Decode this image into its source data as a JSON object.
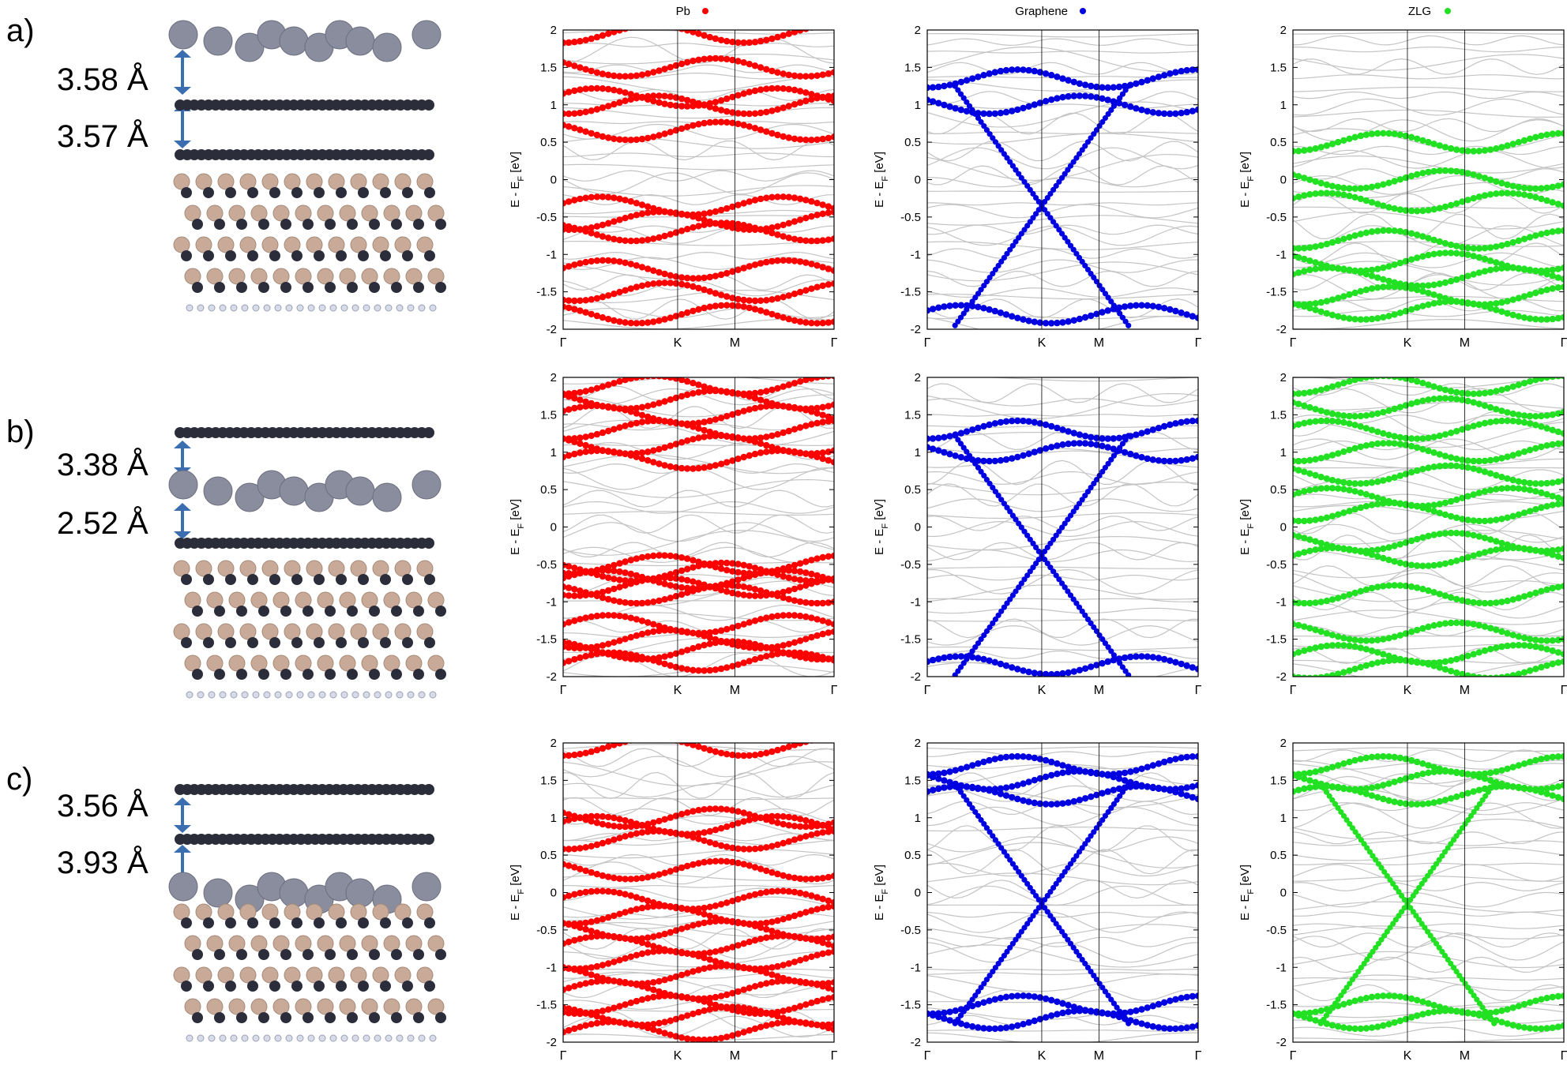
{
  "legend": {
    "pb": {
      "label": "Pb",
      "color": "#ff0000"
    },
    "graphene": {
      "label": "Graphene",
      "color": "#0000e0"
    },
    "zlg": {
      "label": "ZLG",
      "color": "#22e022"
    }
  },
  "rows": [
    {
      "panel_label": "a)",
      "distance_top": "3.58 Å",
      "distance_bottom": "3.57 Å",
      "structure": [
        "pb",
        "graphene",
        "zlg",
        "sic"
      ]
    },
    {
      "panel_label": "b)",
      "distance_top": "3.38 Å",
      "distance_bottom": "2.52 Å",
      "structure": [
        "graphene",
        "pb",
        "zlg",
        "sic"
      ]
    },
    {
      "panel_label": "c)",
      "distance_top": "3.56 Å",
      "distance_bottom": "3.93 Å",
      "structure": [
        "graphene",
        "graphene",
        "pb",
        "sic"
      ]
    }
  ],
  "chart_data": [
    {
      "id": "a-pb",
      "type": "scatter",
      "row": "a)",
      "projection": "Pb",
      "color": "#ff0000",
      "ylabel": "E - E_F [eV]",
      "ylim": [
        -2,
        2
      ],
      "yticks": [
        "2",
        "1.5",
        "1",
        "0.5",
        "0",
        "-0.5",
        "-1",
        "-1.5",
        "-2"
      ],
      "xticks": [
        "Γ",
        "K",
        "M",
        "Γ"
      ],
      "kpath_positions": [
        0,
        0.4226,
        0.6339,
        1.0
      ],
      "highlighted_energies_eV": [
        1.95,
        1.5,
        1.1,
        1.0,
        0.65,
        -0.35,
        -0.55,
        -0.7,
        -1.2,
        -1.5,
        -1.8
      ]
    },
    {
      "id": "a-graphene",
      "type": "scatter",
      "row": "a)",
      "projection": "Graphene",
      "color": "#0000e0",
      "ylabel": "E - E_F [eV]",
      "ylim": [
        -2,
        2
      ],
      "yticks": [
        "2",
        "1.5",
        "1",
        "0.5",
        "0",
        "-0.5",
        "-1",
        "-1.5",
        "-2"
      ],
      "xticks": [
        "Γ",
        "K",
        "M",
        "Γ"
      ],
      "kpath_positions": [
        0,
        0.4226,
        0.6339,
        1.0
      ],
      "dirac_point_eV": -0.35,
      "highlighted_energies_eV": [
        1.35,
        1.0,
        -1.8
      ]
    },
    {
      "id": "a-zlg",
      "type": "scatter",
      "row": "a)",
      "projection": "ZLG",
      "color": "#22e022",
      "ylabel": "E - E_F [eV]",
      "ylim": [
        -2,
        2
      ],
      "yticks": [
        "2",
        "1.5",
        "1",
        "0.5",
        "0",
        "-0.5",
        "-1",
        "-1.5",
        "-2"
      ],
      "xticks": [
        "Γ",
        "K",
        "M",
        "Γ"
      ],
      "kpath_positions": [
        0,
        0.4226,
        0.6339,
        1.0
      ],
      "highlighted_energies_eV": [
        0.5,
        0.0,
        -0.3,
        -0.8,
        -1.1,
        -1.3,
        -1.55,
        -1.75
      ]
    },
    {
      "id": "b-pb",
      "type": "scatter",
      "row": "b)",
      "projection": "Pb",
      "color": "#ff0000",
      "ylabel": "E - E_F [eV]",
      "ylim": [
        -2,
        2
      ],
      "yticks": [
        "2",
        "1.5",
        "1",
        "0.5",
        "0",
        "-0.5",
        "-1",
        "-1.5",
        "-2"
      ],
      "xticks": [
        "Γ",
        "K",
        "M",
        "Γ"
      ],
      "kpath_positions": [
        0,
        0.4226,
        0.6339,
        1.0
      ],
      "highlighted_energies_eV": [
        1.9,
        1.7,
        1.5,
        1.3,
        1.1,
        0.9,
        -0.5,
        -0.6,
        -0.7,
        -0.8,
        -0.9,
        -1.3,
        -1.5,
        -1.65,
        -1.8
      ]
    },
    {
      "id": "b-graphene",
      "type": "scatter",
      "row": "b)",
      "projection": "Graphene",
      "color": "#0000e0",
      "ylabel": "E - E_F [eV]",
      "ylim": [
        -2,
        2
      ],
      "yticks": [
        "2",
        "1.5",
        "1",
        "0.5",
        "0",
        "-0.5",
        "-1",
        "-1.5",
        "-2"
      ],
      "xticks": [
        "Γ",
        "K",
        "M",
        "Γ"
      ],
      "kpath_positions": [
        0,
        0.4226,
        0.6339,
        1.0
      ],
      "dirac_point_eV": -0.38,
      "highlighted_energies_eV": [
        1.3,
        1.0,
        -1.85
      ]
    },
    {
      "id": "b-zlg",
      "type": "scatter",
      "row": "b)",
      "projection": "ZLG",
      "color": "#22e022",
      "ylabel": "E - E_F [eV]",
      "ylim": [
        -2,
        2
      ],
      "yticks": [
        "2",
        "1.5",
        "1",
        "0.5",
        "0",
        "-0.5",
        "-1",
        "-1.5",
        "-2"
      ],
      "xticks": [
        "Γ",
        "K",
        "M",
        "Γ"
      ],
      "kpath_positions": [
        0,
        0.4226,
        0.6339,
        1.0
      ],
      "highlighted_energies_eV": [
        1.9,
        1.6,
        1.3,
        1.0,
        0.7,
        0.4,
        0.2,
        -0.2,
        -0.4,
        -0.9,
        -1.4,
        -1.7,
        -1.9
      ]
    },
    {
      "id": "c-pb",
      "type": "scatter",
      "row": "c)",
      "projection": "Pb",
      "color": "#ff0000",
      "ylabel": "E - E_F [eV]",
      "ylim": [
        -2,
        2
      ],
      "yticks": [
        "2",
        "1.5",
        "1",
        "0.5",
        "0",
        "-0.5",
        "-1",
        "-1.5",
        "-2"
      ],
      "xticks": [
        "Γ",
        "K",
        "M",
        "Γ"
      ],
      "kpath_positions": [
        0,
        0.4226,
        0.6339,
        1.0
      ],
      "highlighted_energies_eV": [
        1.95,
        1.0,
        0.9,
        0.7,
        0.3,
        -0.1,
        -0.3,
        -0.5,
        -0.7,
        -0.9,
        -1.1,
        -1.3,
        -1.5,
        -1.65,
        -1.85
      ]
    },
    {
      "id": "c-graphene",
      "type": "scatter",
      "row": "c)",
      "projection": "Graphene",
      "color": "#0000e0",
      "ylabel": "E - E_F [eV]",
      "ylim": [
        -2,
        2
      ],
      "yticks": [
        "2",
        "1.5",
        "1",
        "0.5",
        "0",
        "-0.5",
        "-1",
        "-1.5",
        "-2"
      ],
      "xticks": [
        "Γ",
        "K",
        "M",
        "Γ"
      ],
      "kpath_positions": [
        0,
        0.4226,
        0.6339,
        1.0
      ],
      "dirac_point_eV": -0.15,
      "highlighted_energies_eV": [
        1.7,
        1.5,
        1.3,
        -1.5,
        -1.7
      ]
    },
    {
      "id": "c-zlg",
      "type": "scatter",
      "row": "c)",
      "projection": "ZLG",
      "color": "#22e022",
      "ylabel": "E - E_F [eV]",
      "ylim": [
        -2,
        2
      ],
      "yticks": [
        "2",
        "1.5",
        "1",
        "0.5",
        "0",
        "-0.5",
        "-1",
        "-1.5",
        "-2"
      ],
      "xticks": [
        "Γ",
        "K",
        "M",
        "Γ"
      ],
      "kpath_positions": [
        0,
        0.4226,
        0.6339,
        1.0
      ],
      "dirac_point_eV": -0.15,
      "highlighted_energies_eV": [
        1.7,
        1.5,
        1.3,
        -1.5,
        -1.7
      ]
    }
  ]
}
